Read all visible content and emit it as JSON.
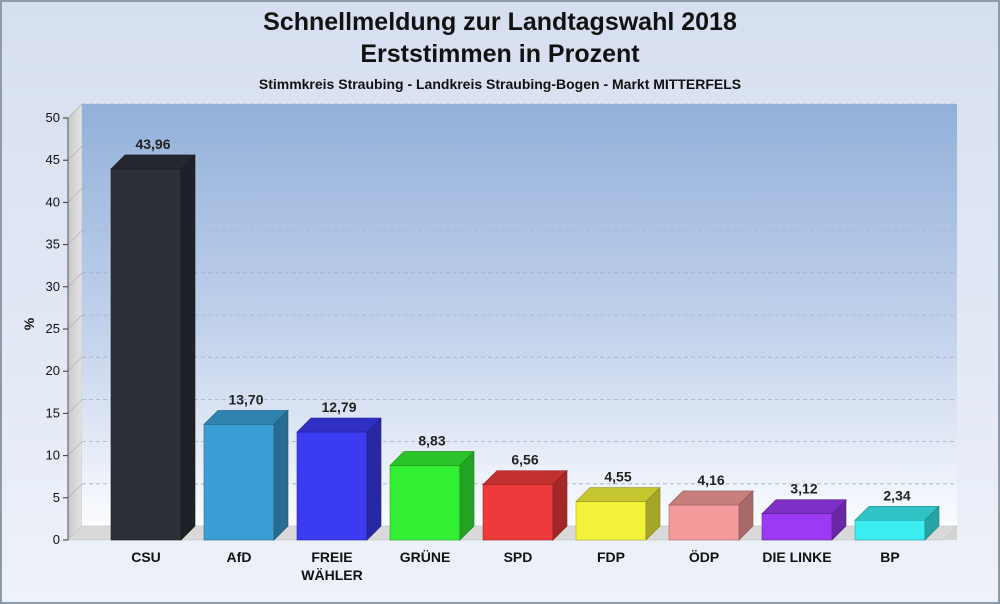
{
  "chart_data": {
    "type": "bar",
    "title": "Schnellmeldung zur Landtagswahl 2018",
    "subtitle_line2": "Erststimmen in Prozent",
    "subtitle": "Stimmkreis Straubing - Landkreis Straubing-Bogen - Markt MITTERFELS",
    "ylabel": "%",
    "ylim": [
      0,
      50
    ],
    "yticks": [
      0,
      5,
      10,
      15,
      20,
      25,
      30,
      35,
      40,
      45,
      50
    ],
    "grid": true,
    "categories": [
      "CSU",
      "AfD",
      "FREIE WÄHLER",
      "GRÜNE",
      "SPD",
      "FDP",
      "ÖDP",
      "DIE LINKE",
      "BP"
    ],
    "category_lines": [
      [
        "CSU"
      ],
      [
        "AfD"
      ],
      [
        "FREIE",
        "WÄHLER"
      ],
      [
        "GRÜNE"
      ],
      [
        "SPD"
      ],
      [
        "FDP"
      ],
      [
        "ÖDP"
      ],
      [
        "DIE LINKE"
      ],
      [
        "BP"
      ]
    ],
    "values": [
      43.96,
      13.7,
      12.79,
      8.83,
      6.56,
      4.55,
      4.16,
      3.12,
      2.34
    ],
    "value_labels": [
      "43,96",
      "13,70",
      "12,79",
      "8,83",
      "6,56",
      "4,55",
      "4,16",
      "3,12",
      "2,34"
    ],
    "colors": [
      "#2d3038",
      "#3a9fd6",
      "#3b3bf2",
      "#33ee33",
      "#ee3a3a",
      "#f2f23a",
      "#f59a9a",
      "#9a3af2",
      "#3aeef2"
    ]
  }
}
